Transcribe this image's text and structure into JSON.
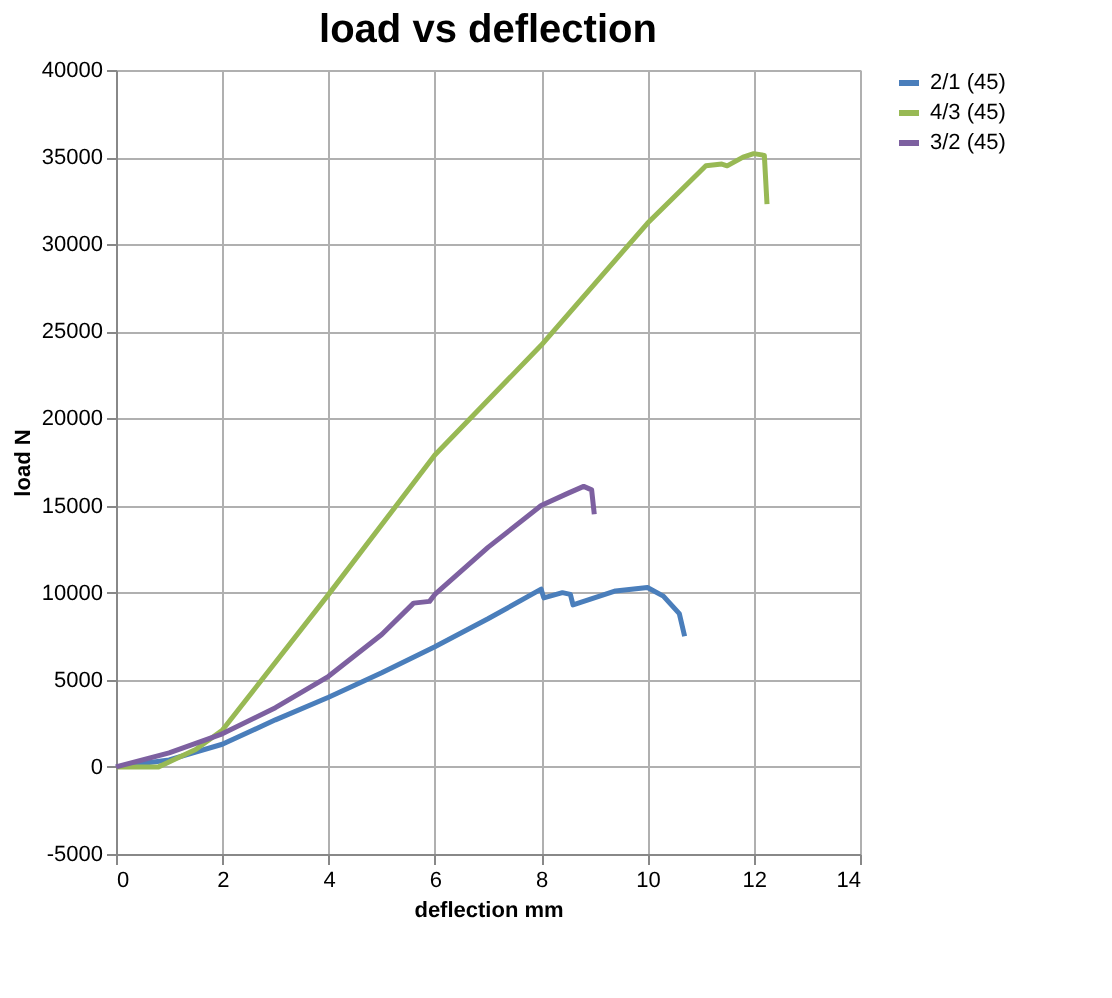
{
  "chart_data": {
    "type": "line",
    "title": "load vs deflection",
    "xlabel": "deflection mm",
    "ylabel": "load N",
    "xlim": [
      0,
      14
    ],
    "xticks": [
      0,
      2,
      4,
      6,
      8,
      10,
      12,
      14
    ],
    "ylim": [
      -5000,
      40000
    ],
    "yticks": [
      -5000,
      0,
      5000,
      10000,
      15000,
      20000,
      25000,
      30000,
      35000,
      40000
    ],
    "grid": true,
    "legend": "right",
    "marker": "none",
    "line_style": "solid",
    "series": [
      {
        "name": "2/1 (45)",
        "color": "#4a7ebb",
        "x": [
          0,
          1,
          2,
          3,
          4,
          5,
          6,
          7,
          8,
          8.05,
          8.4,
          8.55,
          8.6,
          9,
          9.4,
          10,
          10.3,
          10.6,
          10.7
        ],
        "values": [
          0,
          400,
          1300,
          2700,
          4000,
          5400,
          6900,
          8500,
          10200,
          9700,
          10000,
          9900,
          9300,
          9700,
          10100,
          10300,
          9800,
          8800,
          7500
        ]
      },
      {
        "name": "4/3 (45)",
        "color": "#98b954",
        "x": [
          0,
          0.8,
          1.5,
          2,
          4,
          6,
          8,
          10,
          11,
          11.1,
          11.4,
          11.5,
          11.8,
          12,
          12.2,
          12.25
        ],
        "values": [
          0,
          0,
          1000,
          2100,
          9900,
          17900,
          24200,
          31200,
          34200,
          34500,
          34600,
          34500,
          35000,
          35200,
          35100,
          32300
        ]
      },
      {
        "name": "3/2 (45)",
        "color": "#7d60a0",
        "x": [
          0,
          1,
          2,
          3,
          4,
          5,
          5.6,
          5.9,
          6,
          7,
          8,
          8.5,
          8.8,
          8.95,
          9
        ],
        "values": [
          0,
          800,
          1900,
          3400,
          5200,
          7600,
          9400,
          9500,
          9900,
          12600,
          15000,
          15700,
          16100,
          15900,
          14500
        ]
      }
    ]
  }
}
